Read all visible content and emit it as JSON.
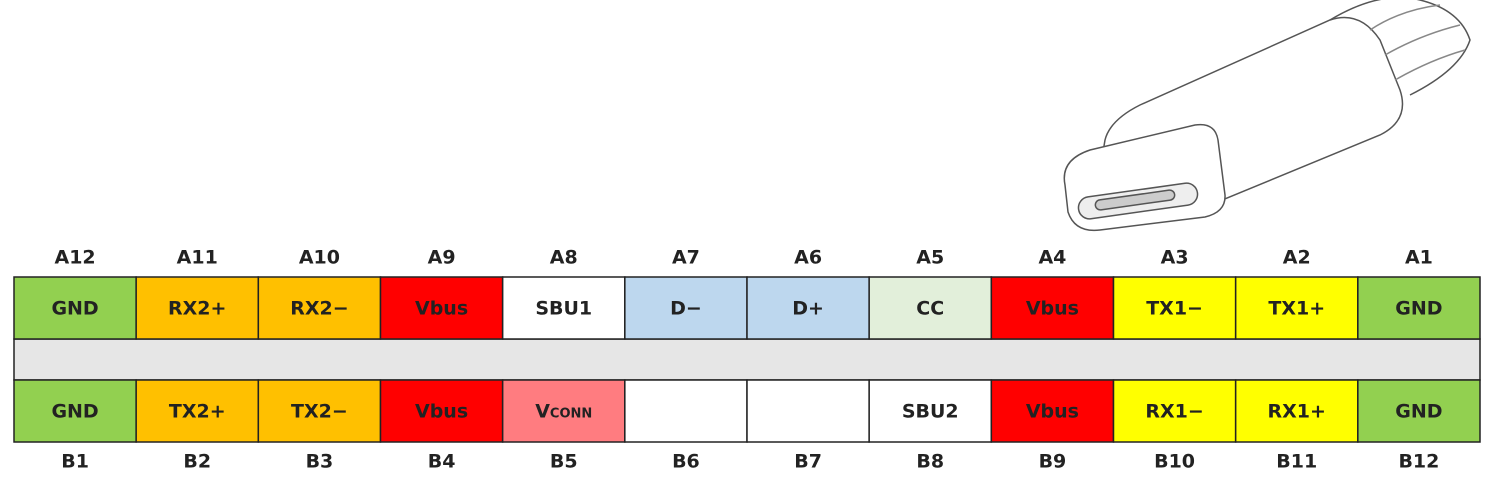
{
  "top_row": [
    {
      "pin": "A12",
      "signal": "GND",
      "color": "#92d050"
    },
    {
      "pin": "A11",
      "signal": "RX2+",
      "color": "#ffc000"
    },
    {
      "pin": "A10",
      "signal": "RX2−",
      "color": "#ffc000"
    },
    {
      "pin": "A9",
      "signal": "Vbus",
      "color": "#ff0000",
      "text_color": "#9c0006"
    },
    {
      "pin": "A8",
      "signal": "SBU1",
      "color": "#ffffff"
    },
    {
      "pin": "A7",
      "signal": "D−",
      "color": "#bdd7ee"
    },
    {
      "pin": "A6",
      "signal": "D+",
      "color": "#bdd7ee"
    },
    {
      "pin": "A5",
      "signal": "CC",
      "color": "#e2efda"
    },
    {
      "pin": "A4",
      "signal": "Vbus",
      "color": "#ff0000",
      "text_color": "#9c0006"
    },
    {
      "pin": "A3",
      "signal": "TX1−",
      "color": "#ffff00"
    },
    {
      "pin": "A2",
      "signal": "TX1+",
      "color": "#ffff00"
    },
    {
      "pin": "A1",
      "signal": "GND",
      "color": "#92d050"
    }
  ],
  "bottom_row": [
    {
      "pin": "B1",
      "signal": "GND",
      "color": "#92d050"
    },
    {
      "pin": "B2",
      "signal": "TX2+",
      "color": "#ffc000"
    },
    {
      "pin": "B3",
      "signal": "TX2−",
      "color": "#ffc000"
    },
    {
      "pin": "B4",
      "signal": "Vbus",
      "color": "#ff0000",
      "text_color": "#9c0006"
    },
    {
      "pin": "B5",
      "signal": "Vconn",
      "color": "#ff7c80",
      "text_color": "#9c0006",
      "small_caps": true
    },
    {
      "pin": "B6",
      "color": "#ffffff"
    },
    {
      "pin": "B7",
      "color": "#ffffff"
    },
    {
      "pin": "B8",
      "signal": "SBU2",
      "color": "#ffffff"
    },
    {
      "pin": "B9",
      "signal": "Vbus",
      "color": "#ff0000",
      "text_color": "#9c0006"
    },
    {
      "pin": "B10",
      "signal": "RX1−",
      "color": "#ffff00"
    },
    {
      "pin": "B11",
      "signal": "RX1+",
      "color": "#ffff00"
    },
    {
      "pin": "B12",
      "signal": "GND",
      "color": "#92d050"
    }
  ]
}
